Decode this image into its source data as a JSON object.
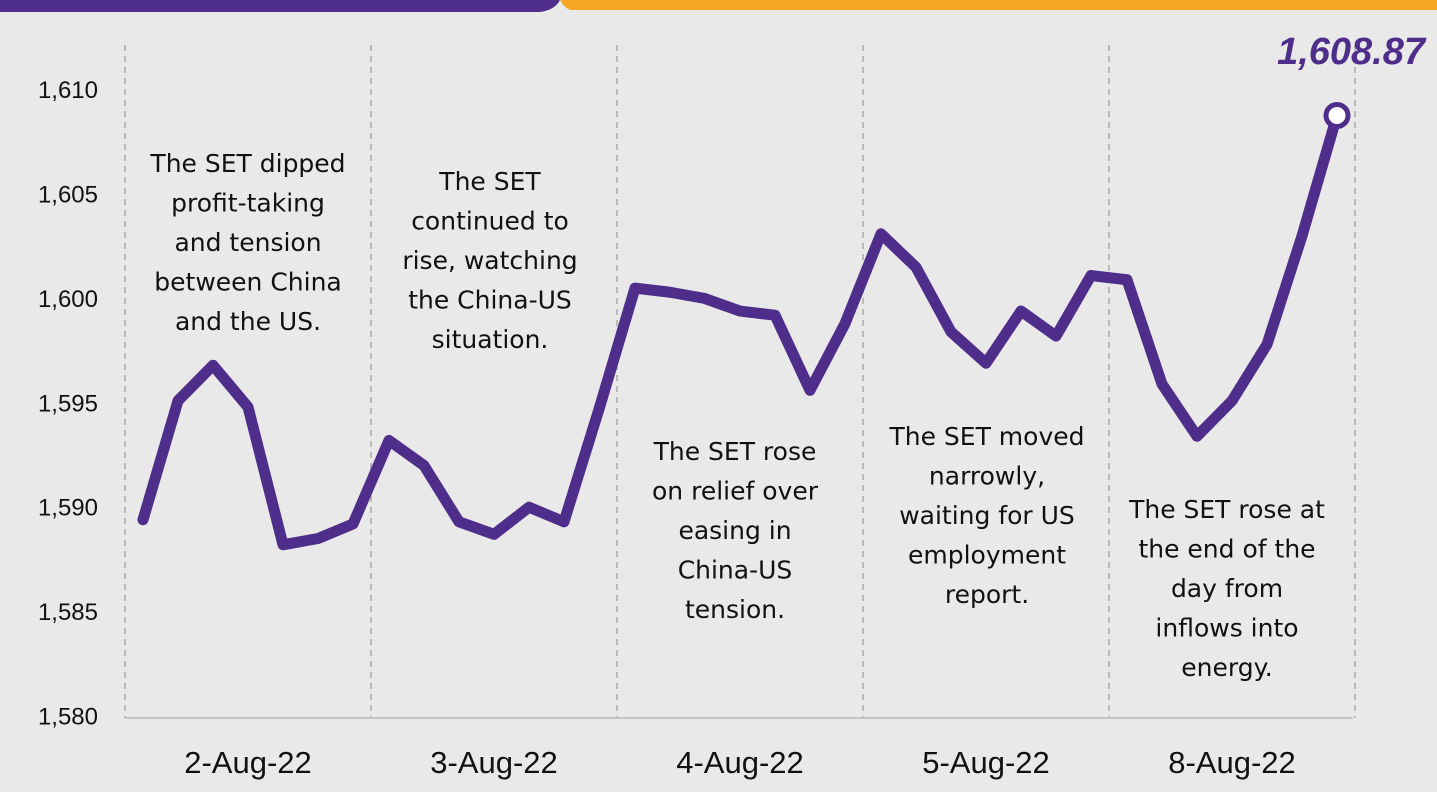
{
  "chart_data": {
    "type": "line",
    "categories": [
      null,
      null,
      null,
      "2-Aug-22",
      null,
      null,
      null,
      null,
      null,
      null,
      "3-Aug-22",
      null,
      null,
      null,
      null,
      null,
      null,
      "4-Aug-22",
      null,
      null,
      null,
      null,
      null,
      null,
      "5-Aug-22",
      null,
      null,
      null,
      null,
      null,
      null,
      "8-Aug-22",
      null,
      null,
      null
    ],
    "series": [
      {
        "name": "SET",
        "color": "#4f2d8a",
        "values": [
          1589.5,
          1595.2,
          1596.9,
          1594.9,
          1588.3,
          1588.6,
          1589.3,
          1593.3,
          1592.1,
          1589.4,
          1588.8,
          1590.1,
          1589.4,
          1594.8,
          1600.6,
          1600.4,
          1600.1,
          1599.5,
          1599.3,
          1595.7,
          1598.9,
          1603.2,
          1601.6,
          1598.5,
          1597.0,
          1599.5,
          1598.3,
          1601.2,
          1601.0,
          1596.0,
          1593.5,
          1595.2,
          1597.9,
          1603.1,
          1608.87
        ],
        "value_labels": [
          null,
          null,
          null,
          null,
          null,
          null,
          null,
          null,
          null,
          null,
          null,
          null,
          null,
          null,
          null,
          null,
          null,
          null,
          null,
          null,
          null,
          null,
          null,
          null,
          null,
          null,
          null,
          null,
          null,
          null,
          null,
          null,
          null,
          null,
          "1,608.87"
        ]
      }
    ],
    "ylim": [
      1580,
      1612
    ],
    "yticks": [
      {
        "value": 1580,
        "label": "1,580"
      },
      {
        "value": 1585,
        "label": "1,585"
      },
      {
        "value": 1590,
        "label": "1,590"
      },
      {
        "value": 1595,
        "label": "1,595"
      },
      {
        "value": 1600,
        "label": "1,600"
      },
      {
        "value": 1605,
        "label": "1,605"
      },
      {
        "value": 1610,
        "label": "1,610"
      }
    ],
    "annotations": [
      [
        "The SET dipped",
        "profit-taking",
        "and tension",
        "between China",
        "and the US."
      ],
      [
        "The SET",
        "continued to",
        "rise, watching",
        "the China-US",
        "situation."
      ],
      [
        "The SET rose",
        "on relief over",
        "easing in",
        "China-US",
        "tension."
      ],
      [
        "The SET moved",
        "narrowly,",
        "waiting for US",
        "employment",
        "report."
      ],
      [
        "The SET rose at",
        "the end of the",
        "day from",
        "inflows into",
        "energy."
      ]
    ]
  }
}
